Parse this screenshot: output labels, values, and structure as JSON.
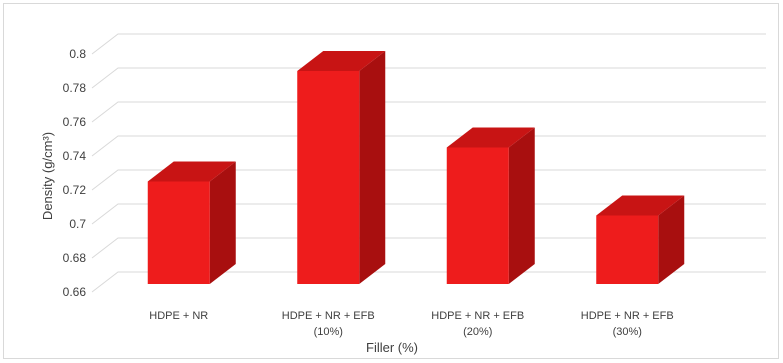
{
  "chart_data": {
    "type": "bar",
    "style": "3d-column",
    "categories": [
      [
        "HDPE + NR"
      ],
      [
        "HDPE + NR + EFB",
        "(10%)"
      ],
      [
        "HDPE + NR + EFB",
        "(20%)"
      ],
      [
        "HDPE + NR + EFB",
        "(30%)"
      ]
    ],
    "values": [
      0.725,
      0.79,
      0.745,
      0.705
    ],
    "xlabel": "Filler (%)",
    "ylabel": "Density (g/cm³)",
    "ylim": [
      0.66,
      0.8
    ],
    "yticks": [
      0.66,
      0.68,
      0.7,
      0.72,
      0.74,
      0.76,
      0.78,
      0.8
    ],
    "grid": true,
    "legend": "none",
    "colors": {
      "front": "#ee1c1c",
      "side": "#a80f0f",
      "top": "#c81414",
      "grid": "#d9d9d9",
      "text": "#404040"
    }
  }
}
